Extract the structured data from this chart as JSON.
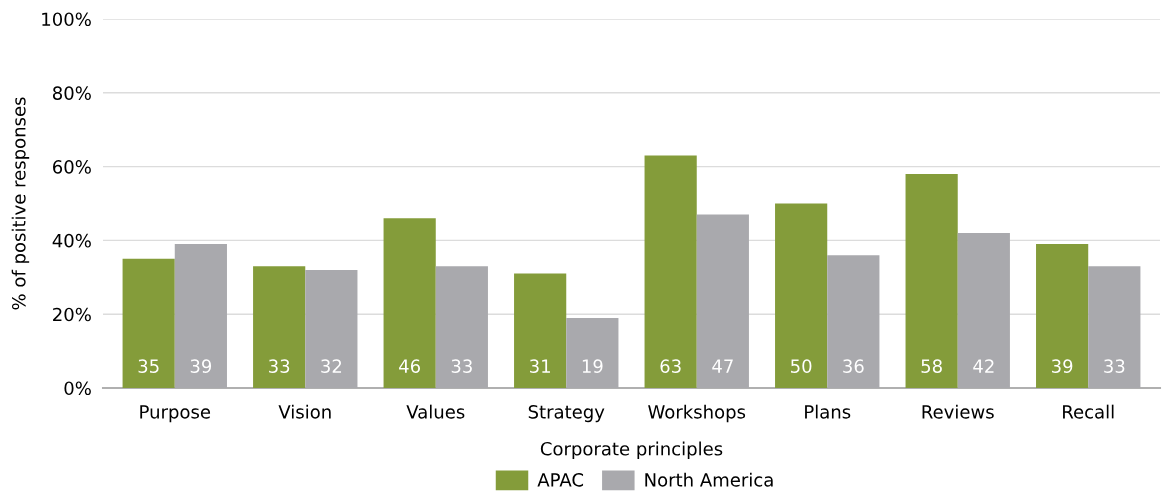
{
  "chart_data": {
    "type": "bar",
    "xlabel": "Corporate principles",
    "ylabel": "% of positive responses",
    "categories": [
      "Purpose",
      "Vision",
      "Values",
      "Strategy",
      "Workshops",
      "Plans",
      "Reviews",
      "Recall"
    ],
    "series": [
      {
        "name": "APAC",
        "color": "#849c3a",
        "values": [
          35,
          33,
          46,
          31,
          63,
          50,
          58,
          39
        ]
      },
      {
        "name": "North America",
        "color": "#a9a9ad",
        "values": [
          39,
          32,
          33,
          19,
          47,
          36,
          42,
          33
        ]
      }
    ],
    "ylim": [
      0,
      100
    ],
    "yticks": [
      {
        "value": 0,
        "label": "0%"
      },
      {
        "value": 20,
        "label": "20%"
      },
      {
        "value": 40,
        "label": "40%"
      },
      {
        "value": 60,
        "label": "60%"
      },
      {
        "value": 80,
        "label": "80%"
      },
      {
        "value": 100,
        "label": "100%"
      }
    ],
    "grid": "y",
    "legend": "bottom",
    "data_labels": true
  }
}
